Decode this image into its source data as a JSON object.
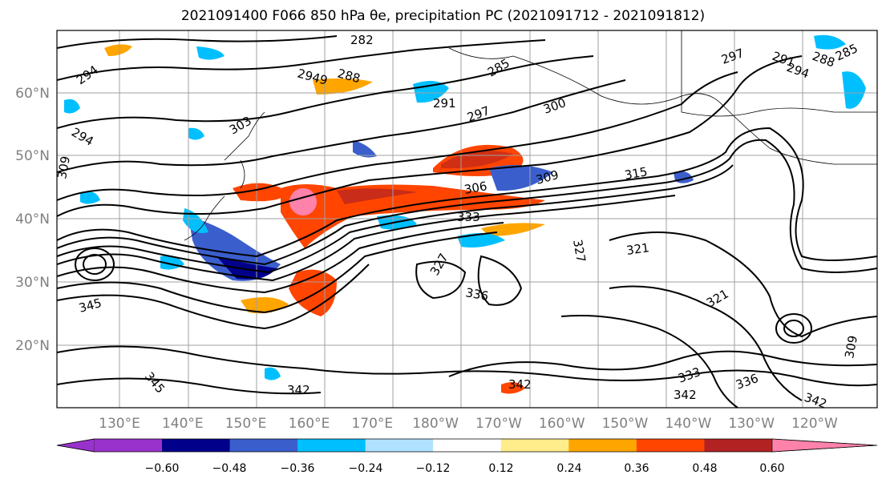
{
  "title": "2021091400 F066 850 hPa θe, precipitation PC (2021091712 - 2021091812)",
  "lat_labels": [
    "60°N",
    "50°N",
    "40°N",
    "30°N",
    "20°N"
  ],
  "lon_labels": [
    "130°E",
    "140°E",
    "150°E",
    "160°E",
    "170°E",
    "180°W",
    "170°W",
    "160°W",
    "150°W",
    "140°W",
    "130°W",
    "120°W"
  ],
  "colorbar": {
    "colors": [
      "#9932cc",
      "#00008b",
      "#3a5fcd",
      "#00bfff",
      "#b0e2ff",
      "#ffffff",
      "#ffec8b",
      "#ffa500",
      "#ff4500",
      "#b22222",
      "#ff82ab"
    ],
    "tick_labels": [
      "−0.60",
      "−0.48",
      "−0.36",
      "−0.24",
      "−0.12",
      "0.12",
      "0.24",
      "0.36",
      "0.48",
      "0.60"
    ],
    "extend": "both"
  },
  "contour_labels": [
    "282",
    "294",
    "2949",
    "288",
    "285",
    "291",
    "297",
    "300",
    "297",
    "291",
    "288",
    "294",
    "285",
    "303",
    "309",
    "309",
    "306",
    "315",
    "333",
    "321",
    "327",
    "336",
    "321",
    "345",
    "342",
    "342",
    "333",
    "342",
    "336",
    "342",
    "345",
    "327",
    "309",
    "294"
  ]
}
